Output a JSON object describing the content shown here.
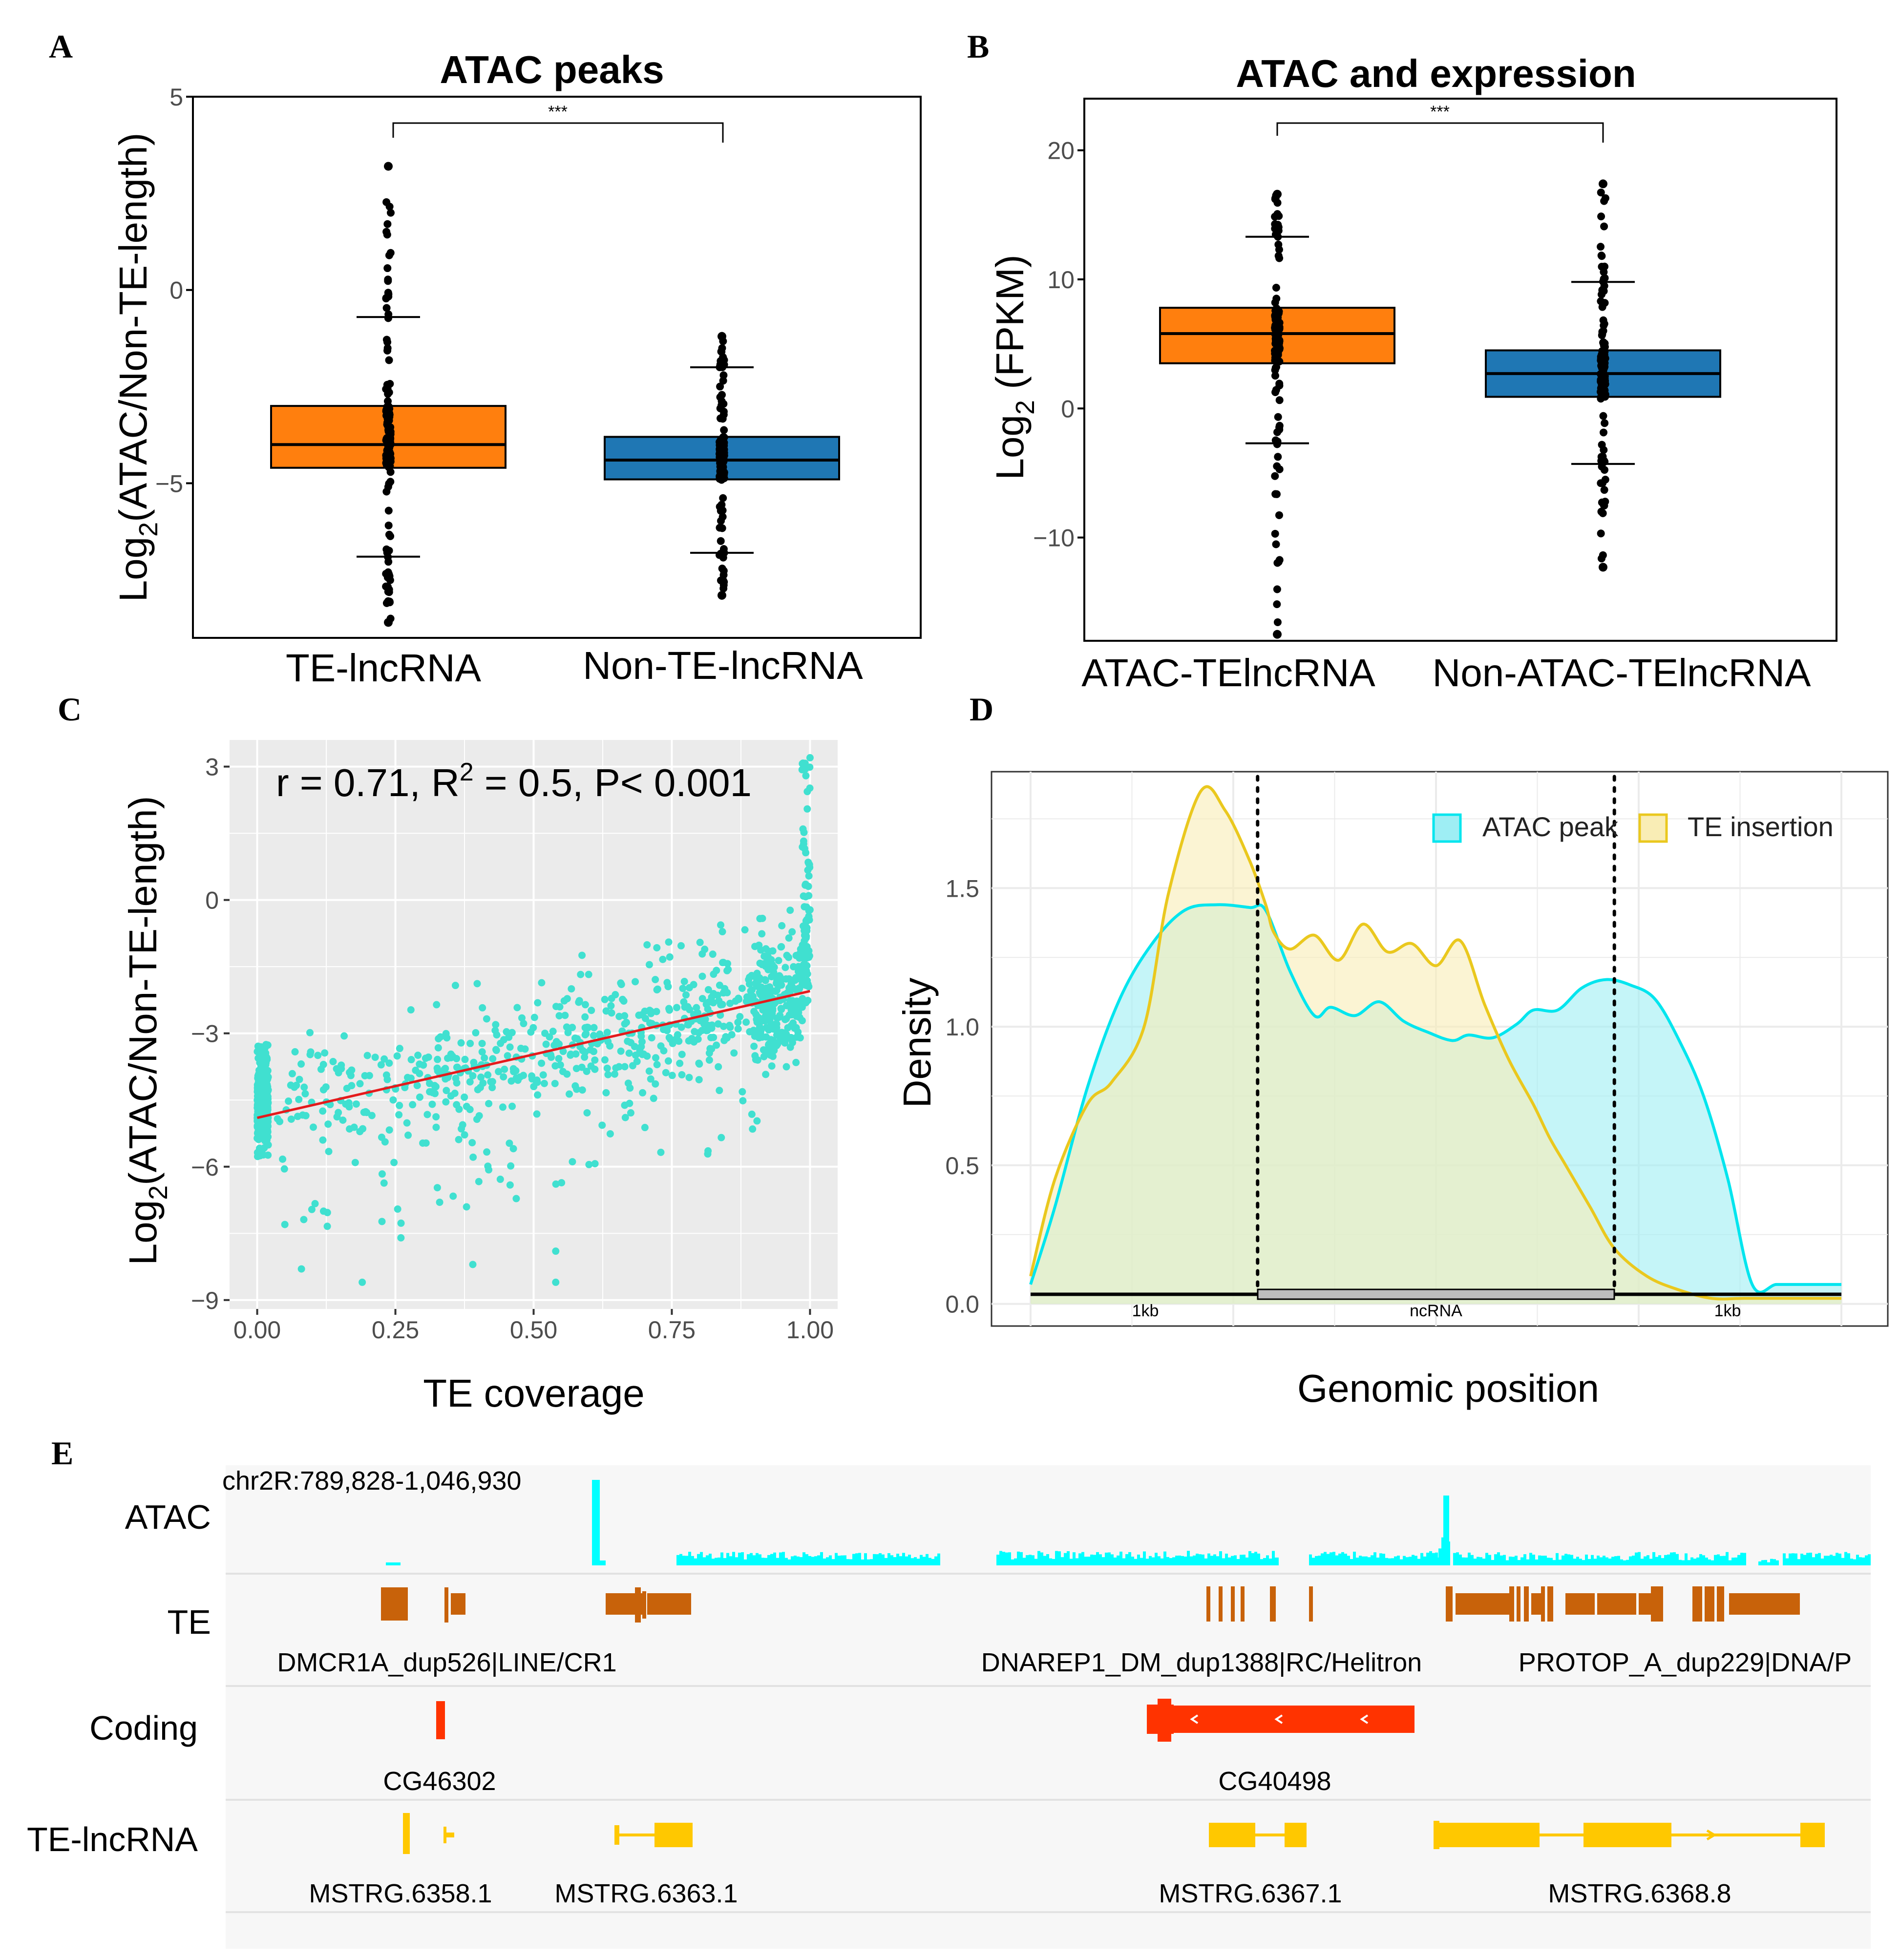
{
  "panels": {
    "A": "A",
    "B": "B",
    "C": "C",
    "D": "D",
    "E": "E"
  },
  "chart_data": [
    {
      "id": "A",
      "type": "boxplot",
      "title": "ATAC peaks",
      "ylabel_main": "Log",
      "ylabel_sub": "2",
      "ylabel_rest": "(ATAC/Non-TE-length)",
      "ylim": [
        -9,
        5
      ],
      "yticks": [
        5,
        0,
        -5
      ],
      "significance": "***",
      "colors": [
        "#FF7F0E",
        "#1F77B4"
      ],
      "groups": [
        {
          "name": "TE-lncRNA",
          "q1": -4.6,
          "median": -4.0,
          "q3": -3.0,
          "whisker_low": -6.9,
          "whisker_high": -0.7,
          "out_low": -8.6,
          "out_high": 3.2
        },
        {
          "name": "Non-TE-lncRNA",
          "q1": -4.9,
          "median": -4.4,
          "q3": -3.8,
          "whisker_low": -6.8,
          "whisker_high": -2.0,
          "out_low": -7.9,
          "out_high": -1.2
        }
      ]
    },
    {
      "id": "B",
      "type": "boxplot",
      "title": "ATAC and expression",
      "ylabel_main": "Log",
      "ylabel_sub": "2",
      "ylabel_rest": " (FPKM)",
      "ylim": [
        -18,
        24
      ],
      "yticks": [
        20,
        10,
        0,
        -10
      ],
      "significance": "***",
      "colors": [
        "#FF7F0E",
        "#1F77B4"
      ],
      "groups": [
        {
          "name": "ATAC-TElncRNA",
          "q1": 3.5,
          "median": 5.8,
          "q3": 7.8,
          "whisker_low": -2.7,
          "whisker_high": 13.3,
          "out_low": -17.5,
          "out_high": 16.6
        },
        {
          "name": "Non-ATAC-TElncRNA",
          "q1": 0.9,
          "median": 2.7,
          "q3": 4.5,
          "whisker_low": -4.3,
          "whisker_high": 9.8,
          "out_low": -12.3,
          "out_high": 17.4
        }
      ]
    },
    {
      "id": "C",
      "type": "scatter",
      "xlabel": "TE coverage",
      "ylabel_main": "Log",
      "ylabel_sub": "2",
      "ylabel_rest": "(ATAC/Non-TE-length)",
      "xlim": [
        -0.05,
        1.05
      ],
      "ylim": [
        -9.2,
        3.6
      ],
      "xticks": [
        "0.00",
        "0.25",
        "0.50",
        "0.75",
        "1.00"
      ],
      "yticks": [
        3,
        0,
        -3,
        -6,
        -9
      ],
      "annotation_prefix": "r = 0.71, R",
      "annotation_sup": "2",
      "annotation_suffix": " = 0.5, P< 0.001",
      "point_color": "#40E0D0",
      "fit_line": {
        "color": "#E41A1C",
        "intercept": -4.9,
        "slope": 2.85
      },
      "points_note": "approx. 1500 points; dense cluster at TE coverage 0 (y -6.5 to -3.2), spread around fit line, steep rise near coverage 1.0 up to 3.2",
      "outliers": [
        [
          0.08,
          -8.3
        ],
        [
          0.19,
          -8.6
        ],
        [
          0.26,
          -7.6
        ],
        [
          0.39,
          -8.2
        ],
        [
          0.54,
          -7.9
        ],
        [
          0.54,
          -8.6
        ],
        [
          0.05,
          -7.3
        ],
        [
          0.12,
          -7.0
        ],
        [
          0.33,
          -6.8
        ]
      ]
    },
    {
      "id": "D",
      "type": "density",
      "xlabel": "Genomic position",
      "ylabel": "Density",
      "ylim": [
        -0.08,
        1.92
      ],
      "yticks": [
        "0.0",
        "0.5",
        "1.0",
        "1.5"
      ],
      "x_segments": [
        "1kb",
        "ncRNA",
        "1kb"
      ],
      "series": [
        {
          "name": "ATAC peak",
          "color": "#00E5EE",
          "fill": "#9EEEF4",
          "x": [
            0,
            0.03,
            0.07,
            0.11,
            0.15,
            0.19,
            0.23,
            0.27,
            0.29,
            0.32,
            0.35,
            0.37,
            0.4,
            0.43,
            0.46,
            0.49,
            0.52,
            0.54,
            0.57,
            0.6,
            0.62,
            0.65,
            0.68,
            0.71,
            0.74,
            0.77,
            0.8,
            0.83,
            0.86,
            0.89,
            0.92,
            0.95,
            0.98,
            1.0
          ],
          "y": [
            0.07,
            0.35,
            0.78,
            1.1,
            1.3,
            1.42,
            1.44,
            1.43,
            1.42,
            1.2,
            1.04,
            1.07,
            1.04,
            1.09,
            1.02,
            0.98,
            0.95,
            0.97,
            0.96,
            1.01,
            1.06,
            1.06,
            1.14,
            1.17,
            1.15,
            1.1,
            0.95,
            0.75,
            0.45,
            0.07,
            0.07,
            0.07,
            0.07,
            0.07
          ]
        },
        {
          "name": "TE insertion",
          "color": "#EAC81E",
          "fill": "#F9EDB5",
          "x": [
            0,
            0.03,
            0.07,
            0.1,
            0.14,
            0.17,
            0.21,
            0.24,
            0.27,
            0.29,
            0.3,
            0.32,
            0.35,
            0.38,
            0.41,
            0.44,
            0.47,
            0.5,
            0.53,
            0.56,
            0.59,
            0.62,
            0.64,
            0.66,
            0.69,
            0.72,
            0.76,
            0.8,
            0.84,
            0.88,
            0.92,
            0.96,
            1.0
          ],
          "y": [
            0.1,
            0.45,
            0.72,
            0.8,
            1.0,
            1.48,
            1.85,
            1.78,
            1.6,
            1.44,
            1.34,
            1.28,
            1.33,
            1.24,
            1.37,
            1.27,
            1.3,
            1.22,
            1.31,
            1.08,
            0.88,
            0.72,
            0.6,
            0.5,
            0.35,
            0.2,
            0.1,
            0.05,
            0.02,
            0.02,
            0.02,
            0.02,
            0.02
          ]
        }
      ],
      "vlines": [
        0.28,
        0.72
      ]
    }
  ],
  "browser": {
    "locus": "chr2R:789,828-1,046,930",
    "tracks": [
      "ATAC",
      "TE",
      "Coding",
      "TE-lncRNA"
    ],
    "te_labels": [
      "DMCR1A_dup526|LINE/CR1",
      "DNAREP1_DM_dup1388|RC/Helitron",
      "PROTOP_A_dup229|DNA/P"
    ],
    "coding_labels": [
      "CG46302",
      "CG40498"
    ],
    "lncrna_labels": [
      "MSTRG.6358.1",
      "MSTRG.6363.1",
      "MSTRG.6367.1",
      "MSTRG.6368.8"
    ],
    "colors": {
      "atac": "#00FFFF",
      "te": "#C8620A",
      "coding": "#FF3300",
      "lncrna": "#FFC800"
    }
  }
}
